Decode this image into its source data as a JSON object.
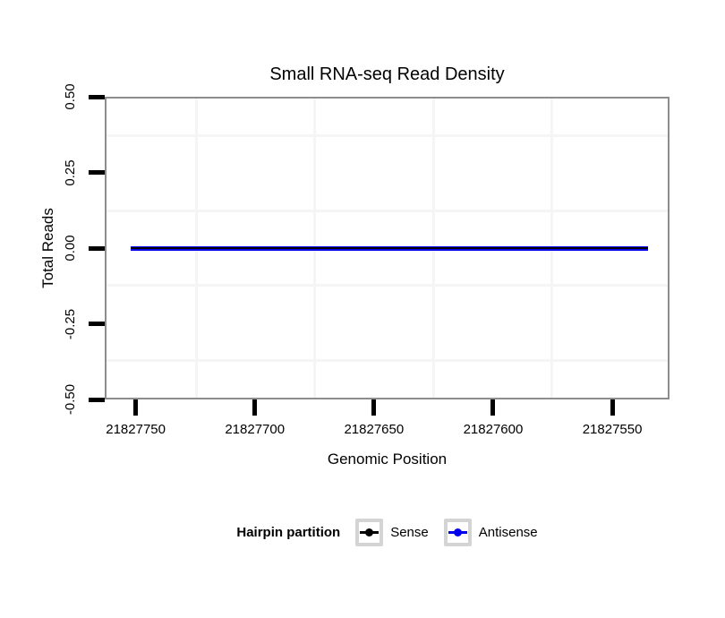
{
  "title": "Small RNA-seq Read Density",
  "axes": {
    "x": {
      "label": "Genomic Position",
      "tick_labels": [
        "21827750",
        "21827700",
        "21827650",
        "21827600",
        "21827550"
      ],
      "reversed": true
    },
    "y": {
      "label": "Total Reads",
      "tick_labels": [
        "0.50",
        "0.25",
        "0.00",
        "-0.25",
        "-0.50"
      ]
    }
  },
  "legend": {
    "title": "Hairpin partition",
    "items": [
      {
        "label": "Sense",
        "color": "#000000"
      },
      {
        "label": "Antisense",
        "color": "#0000ee"
      }
    ]
  },
  "colors": {
    "background": "#ffffff",
    "panel_border": "#8d8d8d",
    "axis_tick": "#000000",
    "grid_minor": "#f5f5f5",
    "legend_key_border": "#d4d4d4",
    "sense_line": "#000000",
    "antisense_line": "#0000ee"
  },
  "chart_data": {
    "type": "line",
    "title": "Small RNA-seq Read Density",
    "xlabel": "Genomic Position",
    "ylabel": "Total Reads",
    "x_ticks": [
      21827750,
      21827700,
      21827650,
      21827600,
      21827550
    ],
    "y_ticks": [
      0.5,
      0.25,
      0.0,
      -0.25,
      -0.5
    ],
    "xlim": [
      21827763,
      21827526
    ],
    "ylim": [
      -0.5,
      0.5
    ],
    "x_reversed": true,
    "grid": "minor gridlines only, very faint",
    "legend_title": "Hairpin partition",
    "legend_position": "bottom",
    "series": [
      {
        "name": "Sense",
        "color": "#000000",
        "x": [
          21827752,
          21827535
        ],
        "y": [
          0,
          0
        ]
      },
      {
        "name": "Antisense",
        "color": "#0000ee",
        "x": [
          21827752,
          21827535
        ],
        "y": [
          0,
          0
        ]
      }
    ]
  }
}
